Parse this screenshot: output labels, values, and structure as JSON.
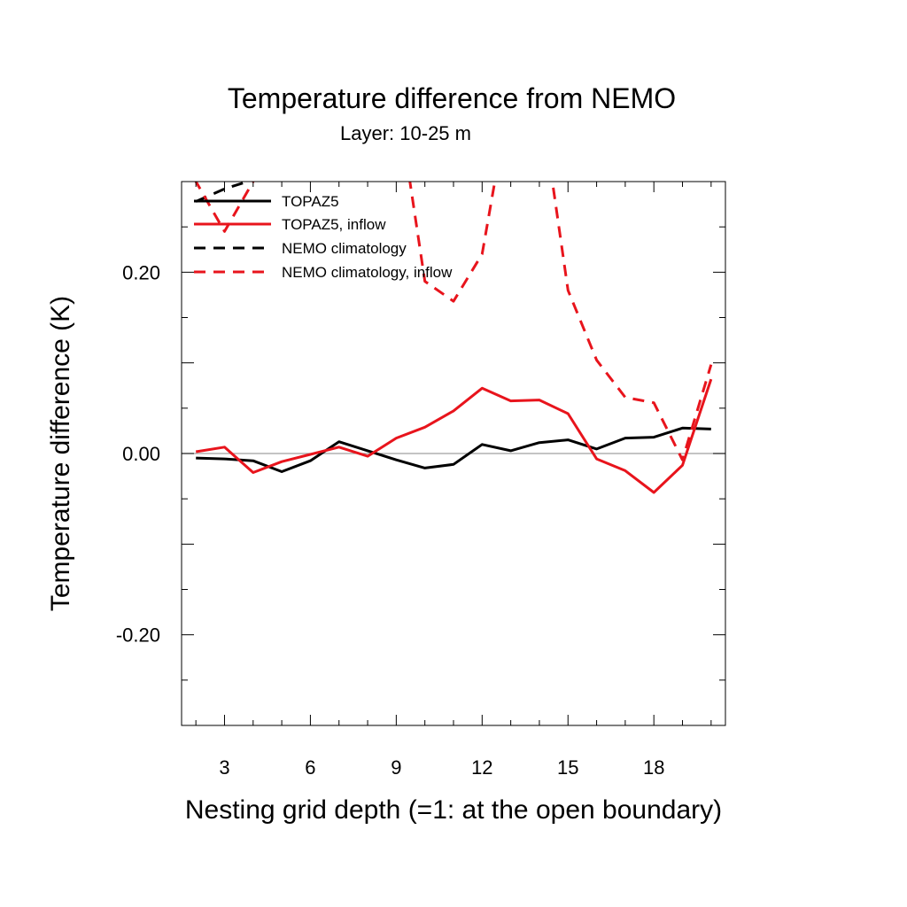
{
  "chart_data": {
    "type": "line",
    "title": "Temperature difference from NEMO",
    "subtitle": "Layer: 10-25 m",
    "xlabel": "Nesting grid depth (=1: at the open boundary)",
    "ylabel": "Temperature difference (K)",
    "xlim": [
      1.5,
      20.5
    ],
    "ylim": [
      -0.3,
      0.3
    ],
    "x_ticks": [
      3,
      6,
      9,
      12,
      15,
      18
    ],
    "x_tick_labels": [
      "3",
      "6",
      "9",
      "12",
      "15",
      "18"
    ],
    "y_ticks": [
      -0.2,
      0.0,
      0.2
    ],
    "y_tick_labels": [
      "-0.20",
      "0.00",
      "0.20"
    ],
    "reference_line": 0.0,
    "legend_position": "top-left",
    "series": [
      {
        "name": "TOPAZ5",
        "color": "#000000",
        "dash": "solid",
        "x": [
          2,
          3,
          4,
          5,
          6,
          7,
          8,
          9,
          10,
          11,
          12,
          13,
          14,
          15,
          16,
          17,
          18,
          19,
          20
        ],
        "y": [
          -0.005,
          -0.006,
          -0.008,
          -0.02,
          -0.008,
          0.013,
          0.003,
          -0.007,
          -0.016,
          -0.012,
          0.01,
          0.003,
          0.012,
          0.015,
          0.005,
          0.017,
          0.018,
          0.028,
          0.027
        ]
      },
      {
        "name": "TOPAZ5, inflow",
        "color": "#e8141c",
        "dash": "solid",
        "x": [
          2,
          3,
          4,
          5,
          6,
          7,
          8,
          9,
          10,
          11,
          12,
          13,
          14,
          15,
          16,
          17,
          18,
          19,
          20
        ],
        "y": [
          0.002,
          0.007,
          -0.021,
          -0.009,
          -0.001,
          0.007,
          -0.003,
          0.017,
          0.029,
          0.047,
          0.072,
          0.058,
          0.059,
          0.044,
          -0.006,
          -0.019,
          -0.043,
          -0.013,
          0.082
        ]
      },
      {
        "name": "NEMO climatology",
        "color": "#000000",
        "dash": "dashed",
        "x": [
          2,
          3,
          4,
          5
        ],
        "y": [
          0.278,
          0.292,
          0.302,
          0.315
        ]
      },
      {
        "name": "NEMO climatology, inflow",
        "color": "#e8141c",
        "dash": "dashed",
        "x": [
          1,
          2,
          3,
          4,
          5,
          6,
          7,
          8,
          9,
          10,
          11,
          12,
          13,
          14,
          15,
          16,
          17,
          18,
          19,
          20
        ],
        "y": [
          0.36,
          0.3,
          0.245,
          0.3,
          0.36,
          0.4,
          0.43,
          0.44,
          0.4,
          0.19,
          0.168,
          0.22,
          0.4,
          0.4,
          0.18,
          0.103,
          0.062,
          0.056,
          -0.007,
          0.098
        ]
      }
    ]
  }
}
